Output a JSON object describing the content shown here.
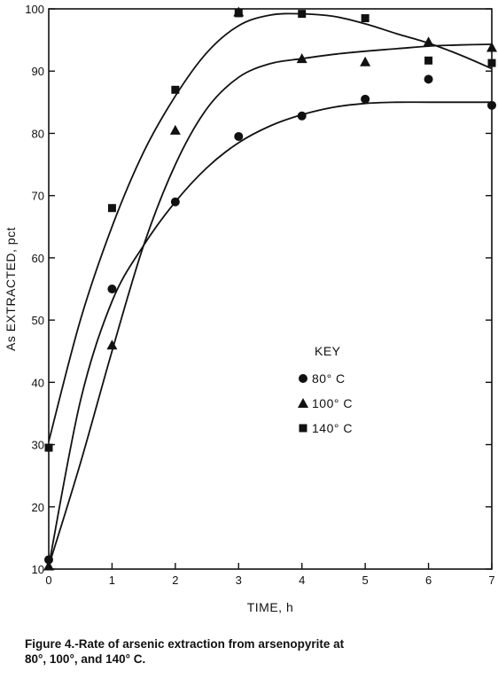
{
  "chart_data": {
    "type": "scatter",
    "title": "",
    "xlabel": "TIME, h",
    "ylabel": "As EXTRACTED, pct",
    "xlim": [
      0,
      7
    ],
    "ylim": [
      10,
      100
    ],
    "x_ticks": [
      0,
      1,
      2,
      3,
      4,
      5,
      6,
      7
    ],
    "y_ticks": [
      10,
      20,
      30,
      40,
      50,
      60,
      70,
      80,
      90,
      100
    ],
    "grid": false,
    "legend_title": "KEY",
    "legend_position": "center-right",
    "series": [
      {
        "name": "80° C",
        "marker": "circle",
        "points": [
          [
            0,
            11.5
          ],
          [
            1,
            55
          ],
          [
            2,
            69
          ],
          [
            3,
            79.5
          ],
          [
            4,
            82.8
          ],
          [
            5,
            85.5
          ],
          [
            6,
            88.7
          ],
          [
            7,
            84.5
          ]
        ],
        "fit_curve": [
          [
            0,
            10.5
          ],
          [
            0.5,
            37
          ],
          [
            1,
            53
          ],
          [
            1.5,
            62
          ],
          [
            2,
            69
          ],
          [
            2.5,
            74.5
          ],
          [
            3,
            78.5
          ],
          [
            3.5,
            81.2
          ],
          [
            4,
            83
          ],
          [
            4.5,
            84.2
          ],
          [
            5,
            84.8
          ],
          [
            5.5,
            85
          ],
          [
            6,
            85
          ],
          [
            6.5,
            85
          ],
          [
            7,
            85
          ]
        ]
      },
      {
        "name": "100° C",
        "marker": "triangle",
        "points": [
          [
            0,
            10.5
          ],
          [
            1,
            46
          ],
          [
            2,
            80.5
          ],
          [
            3,
            99.5
          ],
          [
            4,
            92
          ],
          [
            5,
            91.5
          ],
          [
            6,
            94.7
          ],
          [
            7,
            93.8
          ]
        ],
        "fit_curve": [
          [
            0,
            10.5
          ],
          [
            0.5,
            27
          ],
          [
            1,
            45
          ],
          [
            1.5,
            62
          ],
          [
            2,
            75
          ],
          [
            2.5,
            84
          ],
          [
            3,
            89
          ],
          [
            3.5,
            91.2
          ],
          [
            4,
            92
          ],
          [
            4.5,
            92.7
          ],
          [
            5,
            93.2
          ],
          [
            5.5,
            93.6
          ],
          [
            6,
            94
          ],
          [
            6.5,
            94.2
          ],
          [
            7,
            94.3
          ]
        ]
      },
      {
        "name": "140° C",
        "marker": "square",
        "points": [
          [
            0,
            29.5
          ],
          [
            1,
            68
          ],
          [
            2,
            87
          ],
          [
            3,
            99.3
          ],
          [
            4,
            99.2
          ],
          [
            5,
            98.5
          ],
          [
            6,
            91.7
          ],
          [
            7,
            91.3
          ]
        ],
        "fit_curve": [
          [
            0,
            30.5
          ],
          [
            0.5,
            50
          ],
          [
            1,
            65
          ],
          [
            1.5,
            77
          ],
          [
            2,
            86
          ],
          [
            2.5,
            93
          ],
          [
            3,
            97.3
          ],
          [
            3.5,
            99
          ],
          [
            4,
            99.2
          ],
          [
            4.5,
            98.8
          ],
          [
            5,
            97.6
          ],
          [
            5.5,
            96
          ],
          [
            6,
            94.5
          ],
          [
            6.5,
            92.6
          ],
          [
            7,
            90.4
          ]
        ]
      }
    ]
  },
  "caption": {
    "line1": "Figure 4.-Rate of arsenic extraction from arsenopyrite at",
    "line2": "80°, 100°, and 140° C."
  }
}
